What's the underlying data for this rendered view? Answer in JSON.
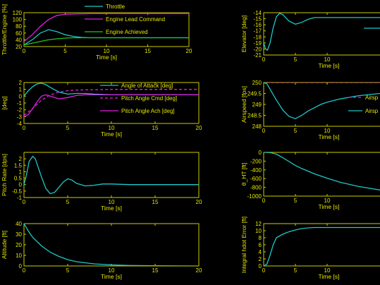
{
  "colors": {
    "background": "#000000",
    "axis": "#cccc00",
    "text": "#e6e600",
    "cyan": "#1ec8c8",
    "magenta": "#e01ee0",
    "green": "#1ec81e"
  },
  "chart_data": [
    {
      "id": "engine",
      "type": "line",
      "xlabel": "Time [s]",
      "ylabel": "Throttle/Engine [%]",
      "xlim": [
        0,
        20
      ],
      "ylim": [
        20,
        120
      ],
      "xticks": [
        0,
        5,
        10,
        15,
        20
      ],
      "yticks": [
        20,
        40,
        60,
        80,
        100,
        120
      ],
      "legend": "top-right",
      "series": [
        {
          "name": "Throttle",
          "color": "cyan",
          "x": [
            0,
            1,
            2,
            3,
            4,
            5,
            6,
            7,
            8,
            10,
            12,
            15,
            20
          ],
          "y": [
            25,
            40,
            60,
            70,
            64,
            55,
            50,
            47,
            46,
            46,
            46,
            46,
            46
          ]
        },
        {
          "name": "Engine Lead Command",
          "color": "magenta",
          "x": [
            0,
            1,
            2,
            3,
            4,
            5,
            6,
            8,
            10,
            15,
            20
          ],
          "y": [
            35,
            55,
            80,
            100,
            112,
            115,
            116,
            117,
            117,
            117,
            117
          ]
        },
        {
          "name": "Engine Achieved",
          "color": "green",
          "x": [
            0,
            1,
            2,
            3,
            4,
            5,
            6,
            8,
            10,
            15,
            20
          ],
          "y": [
            25,
            30,
            35,
            40,
            43,
            45,
            46,
            46,
            46,
            46,
            46
          ]
        }
      ]
    },
    {
      "id": "elevator",
      "type": "line",
      "xlabel": "Time [s]",
      "ylabel": "Elevator [deg]",
      "xlim": [
        0,
        20
      ],
      "ylim": [
        -21,
        -14
      ],
      "xticks": [
        0,
        5,
        10
      ],
      "yticks": [
        -21,
        -20,
        -19,
        -18,
        -17,
        -16,
        -15,
        -14
      ],
      "series": [
        {
          "name": "",
          "color": "cyan",
          "x": [
            0,
            0.3,
            0.6,
            1,
            1.5,
            2,
            2.5,
            3,
            4,
            5,
            6,
            7,
            8,
            10,
            12,
            15,
            20
          ],
          "y": [
            -19,
            -20,
            -20.2,
            -19,
            -16.5,
            -14.7,
            -14.1,
            -14.3,
            -15.4,
            -15.9,
            -15.6,
            -15.1,
            -14.8,
            -14.8,
            -14.8,
            -14.8,
            -14.8
          ]
        }
      ],
      "partial_legend": [
        {
          "label": "",
          "color": "cyan"
        }
      ]
    },
    {
      "id": "attitude",
      "type": "line",
      "xlabel": "Time [s]",
      "ylabel": "[deg]",
      "xlim": [
        0,
        20
      ],
      "ylim": [
        -4,
        2
      ],
      "xticks": [
        0,
        5,
        10,
        15,
        20
      ],
      "yticks": [
        -4,
        -3,
        -2,
        -1,
        0,
        1,
        2
      ],
      "legend": "top-right",
      "series": [
        {
          "name": "Angle of Attack [deg]",
          "color": "cyan",
          "x": [
            0,
            0.5,
            1,
            1.5,
            2,
            2.5,
            3,
            4,
            5,
            6,
            7,
            8,
            10,
            12,
            15,
            20
          ],
          "y": [
            0,
            0.8,
            1.4,
            1.8,
            1.9,
            1.7,
            1.3,
            0.6,
            0.3,
            0.4,
            0.4,
            0.3,
            0.2,
            0.2,
            0.2,
            0.2
          ]
        },
        {
          "name": "Pitch Angle Cmd [deg]",
          "color": "magenta",
          "dashed": true,
          "x": [
            0,
            1,
            2,
            3,
            4,
            5,
            6,
            8,
            10,
            15,
            20
          ],
          "y": [
            -2.8,
            -1.8,
            -0.6,
            0.2,
            0.6,
            0.8,
            0.9,
            0.95,
            1,
            1,
            1
          ]
        },
        {
          "name": "Pitch Angle Ach [deg]",
          "color": "magenta",
          "x": [
            0,
            0.5,
            1,
            1.5,
            2,
            2.5,
            3,
            4,
            5,
            6,
            7,
            8,
            10,
            12,
            15,
            20
          ],
          "y": [
            -3,
            -2.7,
            -1.8,
            -0.8,
            0,
            0.2,
            0,
            -0.4,
            -0.2,
            0.1,
            0.2,
            0.2,
            0.2,
            0.2,
            0.2,
            0.2
          ]
        }
      ]
    },
    {
      "id": "airspeed",
      "type": "line",
      "xlabel": "Time [s]",
      "ylabel": "Airspeed [fps]",
      "xlim": [
        0,
        20
      ],
      "ylim": [
        248,
        250
      ],
      "xticks": [
        0,
        5,
        10
      ],
      "yticks": [
        248,
        248.5,
        249,
        249.5,
        250
      ],
      "series": [
        {
          "name": "Airsp",
          "color": "magenta",
          "dashed": true,
          "x": [
            0,
            20
          ],
          "y": [
            250,
            250
          ]
        },
        {
          "name": "Airsp",
          "color": "cyan",
          "x": [
            0,
            0.5,
            1,
            2,
            3,
            4,
            5,
            6,
            7,
            8,
            9,
            10,
            12,
            15,
            20
          ],
          "y": [
            250,
            249.95,
            249.7,
            249.2,
            248.75,
            248.45,
            248.35,
            248.5,
            248.7,
            248.85,
            249,
            249.1,
            249.25,
            249.4,
            249.55
          ]
        }
      ]
    },
    {
      "id": "pitchrate",
      "type": "line",
      "xlabel": "Time [s]",
      "ylabel": "Pitch Rate [dps]",
      "xlim": [
        0,
        20
      ],
      "ylim": [
        -1,
        2.5
      ],
      "xticks": [
        0,
        5,
        10,
        15,
        20
      ],
      "yticks": [
        -1,
        -0.5,
        0,
        0.5,
        1,
        1.5,
        2
      ],
      "series": [
        {
          "name": "",
          "color": "cyan",
          "x": [
            0,
            0.3,
            0.6,
            1,
            1.3,
            1.6,
            2,
            2.5,
            3,
            3.5,
            4,
            4.5,
            5,
            5.5,
            6,
            7,
            8,
            9,
            10,
            12,
            15,
            20
          ],
          "y": [
            0,
            0.8,
            1.8,
            2.2,
            2,
            1.4,
            0.6,
            -0.3,
            -0.7,
            -0.6,
            -0.2,
            0.2,
            0.45,
            0.35,
            0.1,
            -0.1,
            -0.05,
            0.05,
            0.05,
            0,
            0,
            0
          ]
        }
      ]
    },
    {
      "id": "gamma",
      "type": "line",
      "xlabel": "Time [s]",
      "ylabel": "θ_HT [ft]",
      "xlim": [
        0,
        20
      ],
      "ylim": [
        -1000,
        0
      ],
      "xticks": [
        0,
        5,
        10
      ],
      "yticks": [
        -1000,
        -800,
        -600,
        -400,
        -200,
        0
      ],
      "series": [
        {
          "name": "",
          "color": "cyan",
          "x": [
            0,
            1,
            2,
            3,
            4,
            5,
            6,
            8,
            10,
            12,
            15,
            20
          ],
          "y": [
            0,
            -5,
            -40,
            -120,
            -210,
            -300,
            -370,
            -490,
            -590,
            -680,
            -780,
            -900
          ]
        }
      ]
    },
    {
      "id": "altitude",
      "type": "line",
      "xlabel": "Time [s]",
      "ylabel": "Altitude [ft]",
      "xlim": [
        0,
        20
      ],
      "ylim": [
        0,
        40
      ],
      "xticks": [
        0,
        5,
        10,
        15,
        20
      ],
      "yticks": [
        0,
        10,
        20,
        30,
        40
      ],
      "series": [
        {
          "name": "",
          "color": "cyan",
          "x": [
            0,
            0.5,
            1,
            2,
            3,
            4,
            5,
            6,
            7,
            8,
            10,
            12,
            15,
            20
          ],
          "y": [
            40,
            33,
            27,
            19,
            13,
            9,
            6,
            4,
            3,
            2,
            1,
            0.5,
            0.2,
            0
          ]
        }
      ]
    },
    {
      "id": "integralerror",
      "type": "line",
      "xlabel": "Time [s]",
      "ylabel": "Integral hdot Error [ft]",
      "xlim": [
        0,
        20
      ],
      "ylim": [
        0,
        12
      ],
      "xticks": [
        0,
        5,
        10
      ],
      "yticks": [
        0,
        2,
        4,
        6,
        8,
        10,
        12
      ],
      "series": [
        {
          "name": "",
          "color": "cyan",
          "x": [
            0,
            0.5,
            1,
            1.5,
            2,
            3,
            4,
            5,
            6,
            7,
            8,
            10,
            12,
            15,
            20
          ],
          "y": [
            0,
            0.5,
            3,
            6,
            8,
            9,
            9.7,
            10.2,
            10.6,
            10.8,
            10.9,
            10.9,
            10.9,
            10.9,
            10.9
          ]
        }
      ]
    }
  ]
}
